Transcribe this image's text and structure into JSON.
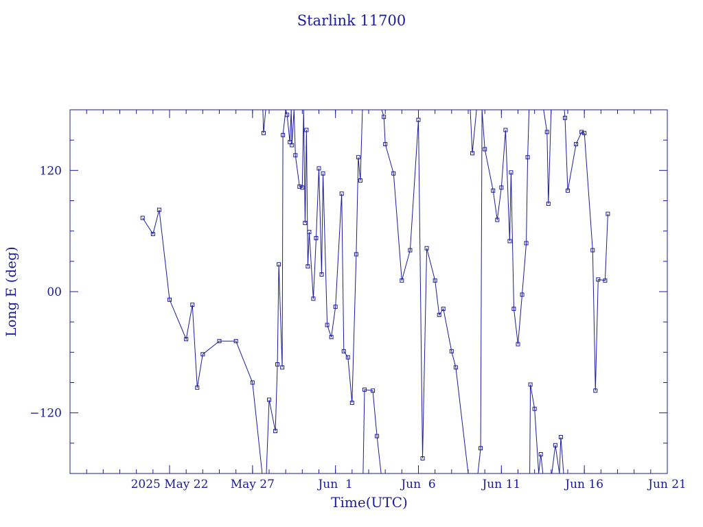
{
  "colors": {
    "frame": "#1a1a9c",
    "series": "#1a1a9c",
    "background": "#ffffff"
  },
  "chart_data": {
    "type": "line",
    "title": "Starlink 11700",
    "xlabel": "Time(UTC)",
    "ylabel": "Long E (deg)",
    "xlim": [
      "2025-05-16",
      "2025-06-21"
    ],
    "ylim": [
      -180,
      180
    ],
    "x_ticks": [
      {
        "date": "2025-05-22",
        "label": "2025 May 22"
      },
      {
        "date": "2025-05-27",
        "label": "May 27"
      },
      {
        "date": "2025-06-01",
        "label": "Jun  1"
      },
      {
        "date": "2025-06-06",
        "label": "Jun  6"
      },
      {
        "date": "2025-06-11",
        "label": "Jun 11"
      },
      {
        "date": "2025-06-16",
        "label": "Jun 16"
      },
      {
        "date": "2025-06-21",
        "label": "Jun 21"
      }
    ],
    "y_ticks": [
      {
        "value": 120,
        "label": "120"
      },
      {
        "value": 0,
        "label": "00"
      },
      {
        "value": -120,
        "label": "−120"
      }
    ],
    "grid": false,
    "markers": "small open squares",
    "series": [
      {
        "values": [
          [
            "2025-05-20T09:00",
            73
          ],
          [
            "2025-05-21T00:00",
            57
          ],
          [
            "2025-05-21T09:00",
            81
          ],
          [
            "2025-05-22T00:00",
            -8
          ],
          [
            "2025-05-23T00:00",
            -47
          ],
          [
            "2025-05-23T09:00",
            -13
          ],
          [
            "2025-05-23T16:00",
            -95
          ],
          [
            "2025-05-24T00:00",
            -62
          ],
          [
            "2025-05-25T00:00",
            -49
          ],
          [
            "2025-05-26T00:00",
            -49
          ],
          [
            "2025-05-27T00:00",
            -90
          ],
          [
            "2025-05-27T14:00",
            -180
          ],
          [
            "2025-05-27T15:00",
            180
          ],
          [
            "2025-05-27T16:00",
            157
          ],
          [
            "2025-05-27T19:00",
            180
          ],
          [
            "2025-05-27T20:00",
            -180
          ],
          [
            "2025-05-28T00:00",
            -107
          ],
          [
            "2025-05-28T09:00",
            -138
          ],
          [
            "2025-05-28T12:00",
            -72
          ],
          [
            "2025-05-28T14:00",
            27
          ],
          [
            "2025-05-28T19:00",
            -75
          ],
          [
            "2025-05-28T20:00",
            155
          ],
          [
            "2025-05-29T00:00",
            180
          ],
          [
            "2025-05-29T02:00",
            175
          ],
          [
            "2025-05-29T06:00",
            148
          ],
          [
            "2025-05-29T08:00",
            180
          ],
          [
            "2025-05-29T09:00",
            145
          ],
          [
            "2025-05-29T12:00",
            180
          ],
          [
            "2025-05-29T14:00",
            135
          ],
          [
            "2025-05-29T20:00",
            104
          ],
          [
            "2025-05-30T00:00",
            103
          ],
          [
            "2025-05-30T02:00",
            180
          ],
          [
            "2025-05-30T04:00",
            68
          ],
          [
            "2025-05-30T06:00",
            160
          ],
          [
            "2025-05-30T08:00",
            25
          ],
          [
            "2025-05-30T10:00",
            59
          ],
          [
            "2025-05-30T16:00",
            -7
          ],
          [
            "2025-05-30T20:00",
            53
          ],
          [
            "2025-05-31T00:00",
            122
          ],
          [
            "2025-05-31T04:00",
            17
          ],
          [
            "2025-05-31T06:00",
            117
          ],
          [
            "2025-05-31T12:00",
            -33
          ],
          [
            "2025-05-31T18:00",
            -45
          ],
          [
            "2025-06-01T00:00",
            -15
          ],
          [
            "2025-06-01T09:00",
            97
          ],
          [
            "2025-06-01T12:00",
            -59
          ],
          [
            "2025-06-01T18:00",
            -65
          ],
          [
            "2025-06-02T00:00",
            -110
          ],
          [
            "2025-06-02T06:00",
            37
          ],
          [
            "2025-06-02T09:00",
            133
          ],
          [
            "2025-06-02T12:00",
            110
          ],
          [
            "2025-06-02T15:00",
            180
          ],
          [
            "2025-06-02T16:00",
            -180
          ],
          [
            "2025-06-02T18:00",
            -97
          ],
          [
            "2025-06-03T06:00",
            -98
          ],
          [
            "2025-06-03T12:00",
            -143
          ],
          [
            "2025-06-03T18:00",
            -180
          ],
          [
            "2025-06-03T19:00",
            180
          ],
          [
            "2025-06-03T22:00",
            173
          ],
          [
            "2025-06-04T00:00",
            146
          ],
          [
            "2025-06-04T12:00",
            117
          ],
          [
            "2025-06-05T00:00",
            11
          ],
          [
            "2025-06-05T12:00",
            41
          ],
          [
            "2025-06-06T00:00",
            170
          ],
          [
            "2025-06-06T06:00",
            -165
          ],
          [
            "2025-06-06T12:00",
            43
          ],
          [
            "2025-06-07T00:00",
            11
          ],
          [
            "2025-06-07T06:00",
            -23
          ],
          [
            "2025-06-07T12:00",
            -17
          ],
          [
            "2025-06-08T00:00",
            -59
          ],
          [
            "2025-06-08T06:00",
            -75
          ],
          [
            "2025-06-09T00:00",
            -180
          ],
          [
            "2025-06-09T03:00",
            180
          ],
          [
            "2025-06-09T06:00",
            137
          ],
          [
            "2025-06-09T12:00",
            180
          ],
          [
            "2025-06-09T14:00",
            -180
          ],
          [
            "2025-06-09T18:00",
            -155
          ],
          [
            "2025-06-09T20:00",
            180
          ],
          [
            "2025-06-10T00:00",
            141
          ],
          [
            "2025-06-10T12:00",
            100
          ],
          [
            "2025-06-10T18:00",
            71
          ],
          [
            "2025-06-11T00:00",
            103
          ],
          [
            "2025-06-11T06:00",
            160
          ],
          [
            "2025-06-11T12:00",
            50
          ],
          [
            "2025-06-11T14:00",
            118
          ],
          [
            "2025-06-11T18:00",
            -17
          ],
          [
            "2025-06-12T00:00",
            -52
          ],
          [
            "2025-06-12T06:00",
            -3
          ],
          [
            "2025-06-12T12:00",
            48
          ],
          [
            "2025-06-12T14:00",
            133
          ],
          [
            "2025-06-12T16:00",
            180
          ],
          [
            "2025-06-12T17:00",
            -180
          ],
          [
            "2025-06-12T18:00",
            -92
          ],
          [
            "2025-06-13T00:00",
            -116
          ],
          [
            "2025-06-13T06:00",
            -180
          ],
          [
            "2025-06-13T09:00",
            -161
          ],
          [
            "2025-06-13T12:00",
            -180
          ],
          [
            "2025-06-13T13:00",
            180
          ],
          [
            "2025-06-13T18:00",
            158
          ],
          [
            "2025-06-13T20:00",
            87
          ],
          [
            "2025-06-14T00:00",
            180
          ],
          [
            "2025-06-14T01:00",
            -180
          ],
          [
            "2025-06-14T06:00",
            -152
          ],
          [
            "2025-06-14T12:00",
            -180
          ],
          [
            "2025-06-14T14:00",
            -144
          ],
          [
            "2025-06-14T18:00",
            -180
          ],
          [
            "2025-06-14T19:00",
            180
          ],
          [
            "2025-06-14T20:00",
            172
          ],
          [
            "2025-06-15T00:00",
            100
          ],
          [
            "2025-06-15T12:00",
            146
          ],
          [
            "2025-06-15T20:00",
            158
          ],
          [
            "2025-06-16T00:00",
            157
          ],
          [
            "2025-06-16T12:00",
            41
          ],
          [
            "2025-06-16T16:00",
            -98
          ],
          [
            "2025-06-16T20:00",
            12
          ],
          [
            "2025-06-17T06:00",
            11
          ],
          [
            "2025-06-17T10:00",
            77
          ]
        ]
      }
    ]
  }
}
